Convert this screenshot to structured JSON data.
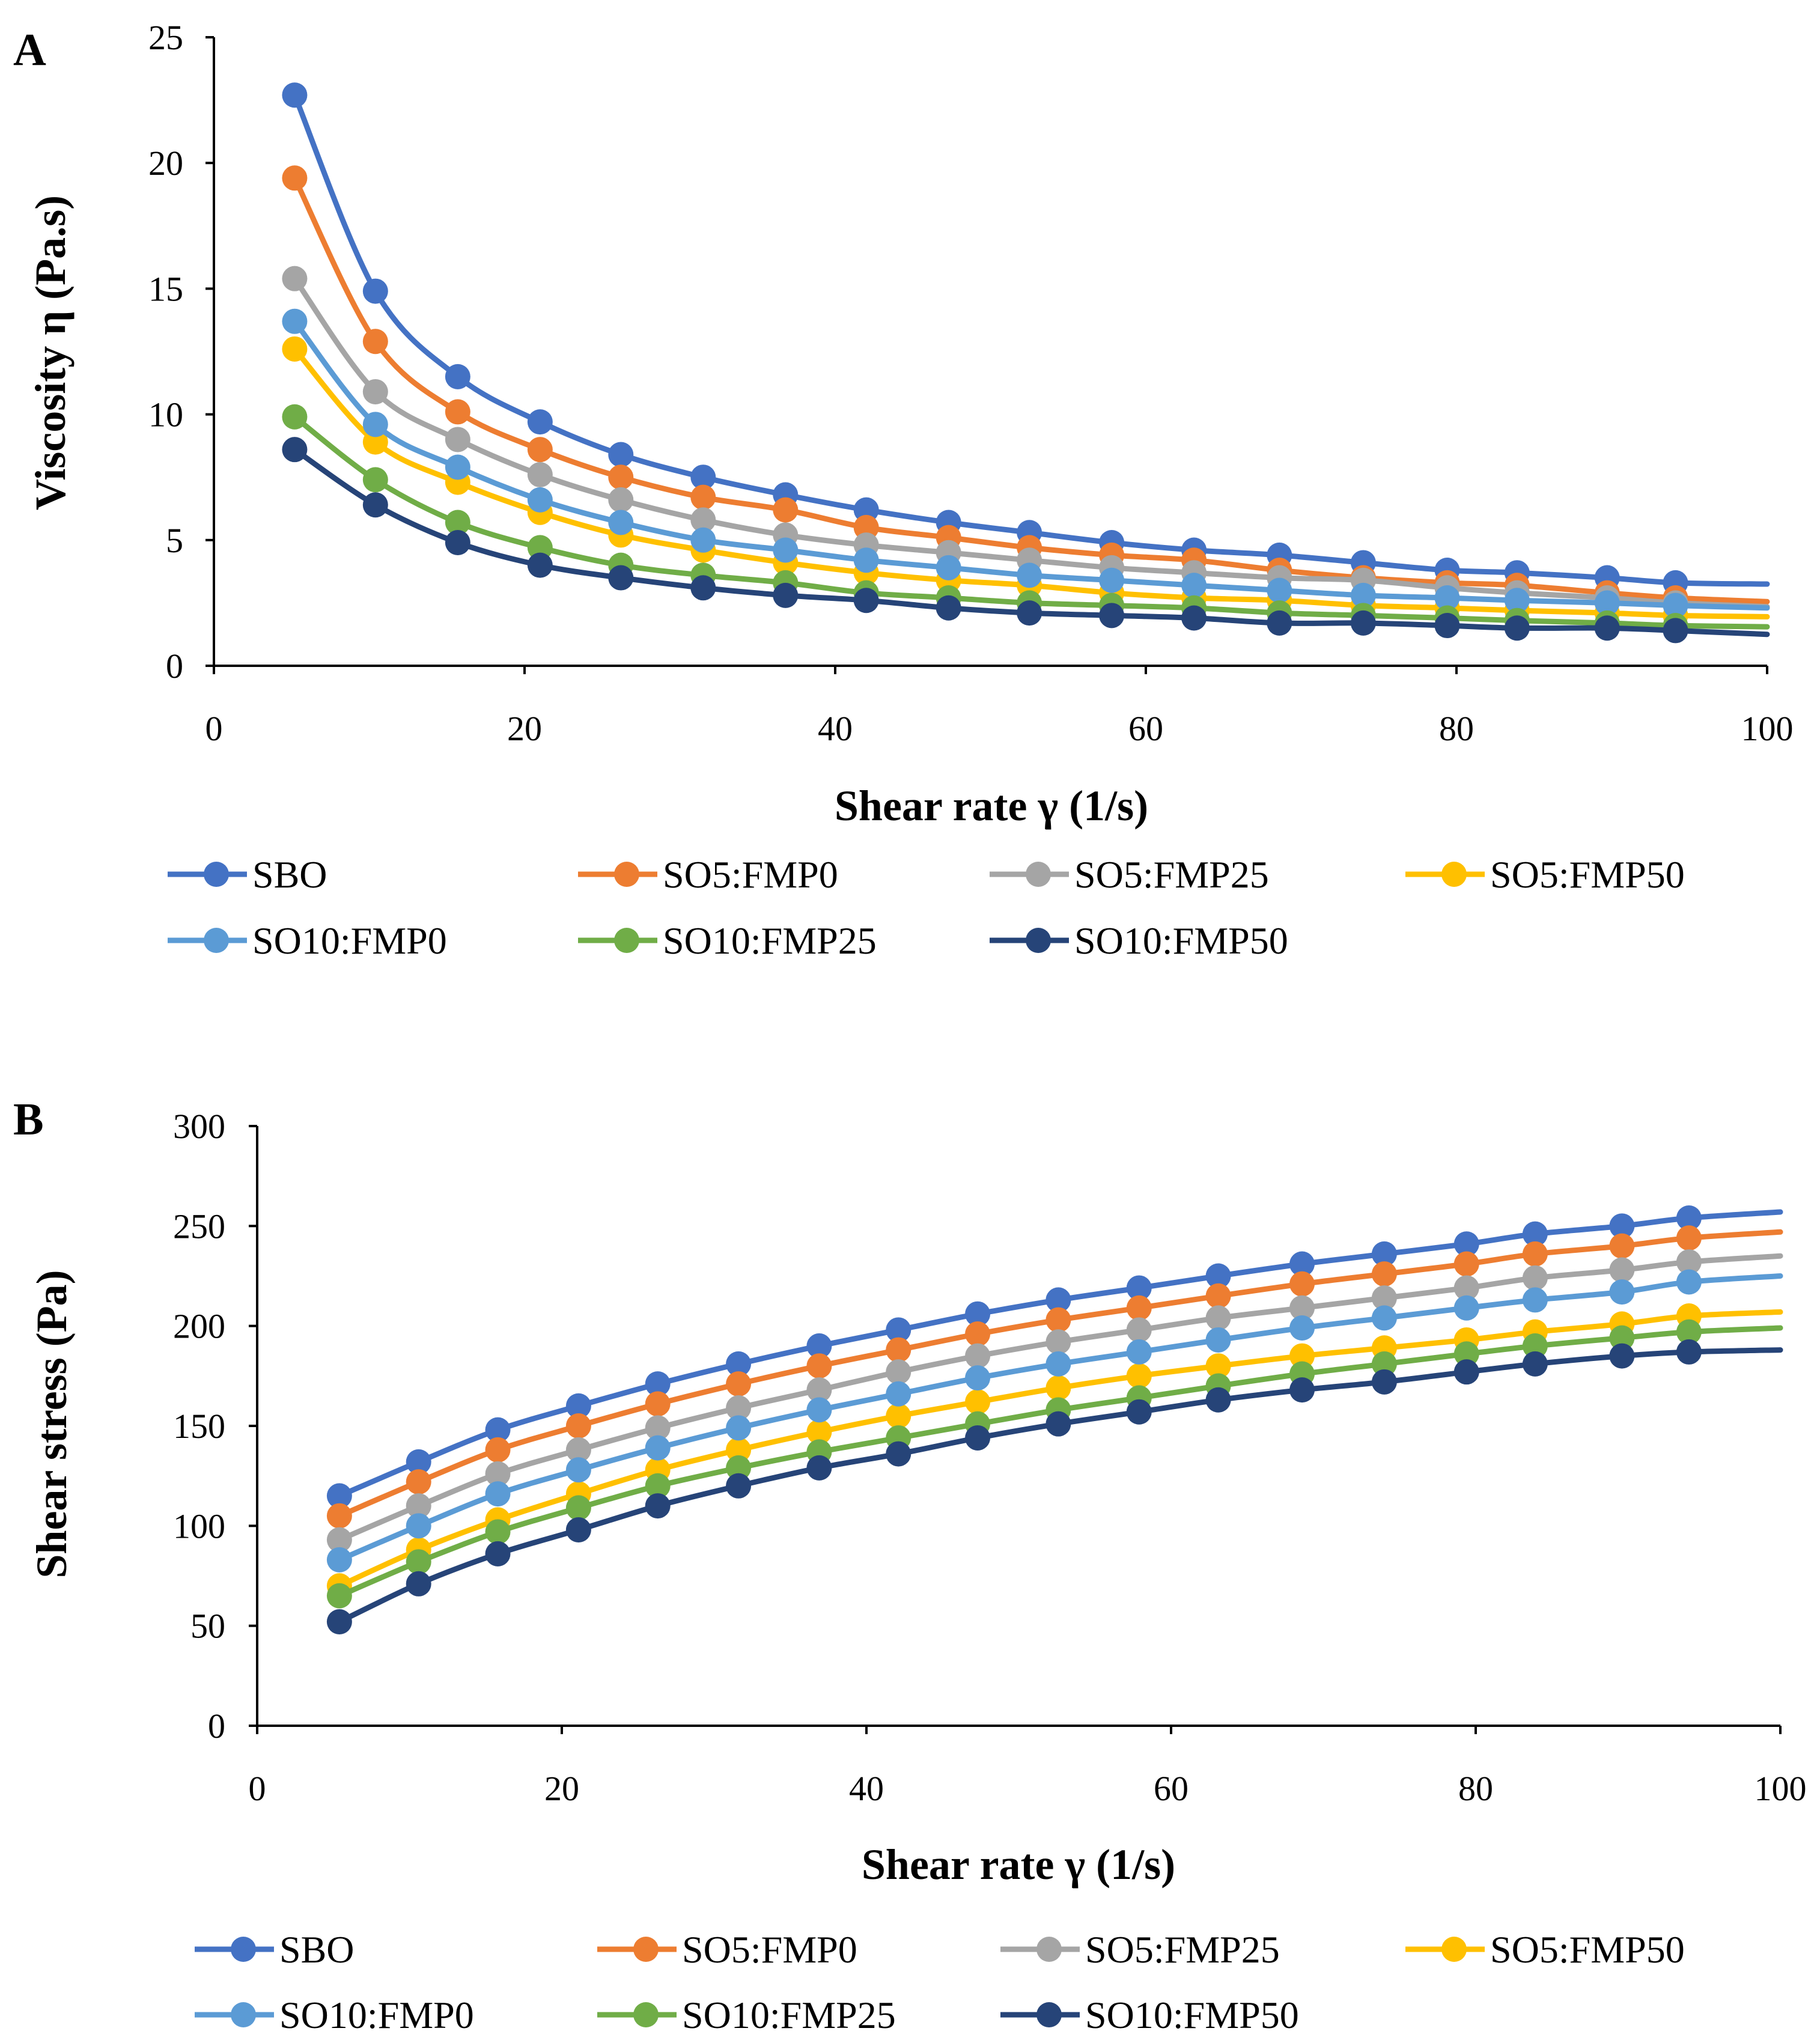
{
  "series_meta": [
    {
      "name": "SBO",
      "color": "#4472C4"
    },
    {
      "name": "SO5:FMP0",
      "color": "#ED7D31"
    },
    {
      "name": "SO5:FMP25",
      "color": "#A5A5A5"
    },
    {
      "name": "SO5:FMP50",
      "color": "#FFC000"
    },
    {
      "name": "SO10:FMP0",
      "color": "#5B9BD5"
    },
    {
      "name": "SO10:FMP25",
      "color": "#70AD47"
    },
    {
      "name": "SO10:FMP50",
      "color": "#264478"
    }
  ],
  "chart_data": [
    {
      "type": "line",
      "panel_label": "A",
      "title": "",
      "xlabel": "Shear rate γ (1/s)",
      "ylabel": "Viscosity η (Pa.s)",
      "xlim": [
        0,
        100
      ],
      "ylim": [
        0,
        25
      ],
      "xticks": [
        "0",
        "20",
        "40",
        "60",
        "80",
        "100"
      ],
      "yticks": [
        "0",
        "5",
        "10",
        "15",
        "20",
        "25"
      ],
      "x": [
        5.2,
        10.4,
        15.7,
        21.0,
        26.2,
        31.5,
        36.8,
        42.0,
        47.3,
        52.5,
        57.8,
        63.1,
        68.6,
        74.0,
        79.4,
        83.9,
        89.7,
        94.1
      ],
      "x_end": 100,
      "series": [
        {
          "name": "SBO",
          "values": [
            22.7,
            14.9,
            11.5,
            9.7,
            8.4,
            7.5,
            6.8,
            6.2,
            5.7,
            5.3,
            4.9,
            4.6,
            4.4,
            4.1,
            3.8,
            3.7,
            3.5,
            3.3
          ],
          "end": 3.25
        },
        {
          "name": "SO5:FMP0",
          "values": [
            19.4,
            12.9,
            10.1,
            8.6,
            7.5,
            6.7,
            6.2,
            5.5,
            5.1,
            4.7,
            4.4,
            4.2,
            3.8,
            3.5,
            3.3,
            3.2,
            2.9,
            2.7
          ],
          "end": 2.55
        },
        {
          "name": "SO5:FMP25",
          "values": [
            15.4,
            10.9,
            9.0,
            7.6,
            6.6,
            5.8,
            5.2,
            4.8,
            4.5,
            4.2,
            3.9,
            3.7,
            3.5,
            3.4,
            3.1,
            2.9,
            2.7,
            2.5
          ],
          "end": 2.35
        },
        {
          "name": "SO5:FMP50",
          "values": [
            12.6,
            8.9,
            7.3,
            6.1,
            5.2,
            4.6,
            4.1,
            3.7,
            3.4,
            3.2,
            2.9,
            2.7,
            2.6,
            2.4,
            2.3,
            2.2,
            2.1,
            2.0
          ],
          "end": 1.95
        },
        {
          "name": "SO10:FMP0",
          "values": [
            13.7,
            9.6,
            7.9,
            6.6,
            5.7,
            5.0,
            4.6,
            4.2,
            3.9,
            3.6,
            3.4,
            3.2,
            3.0,
            2.8,
            2.7,
            2.6,
            2.5,
            2.4
          ],
          "end": 2.3
        },
        {
          "name": "SO10:FMP25",
          "values": [
            9.9,
            7.4,
            5.7,
            4.7,
            4.0,
            3.6,
            3.3,
            2.9,
            2.7,
            2.5,
            2.4,
            2.3,
            2.1,
            2.0,
            1.9,
            1.8,
            1.7,
            1.6
          ],
          "end": 1.55
        },
        {
          "name": "SO10:FMP50",
          "values": [
            8.6,
            6.4,
            4.9,
            4.0,
            3.5,
            3.1,
            2.8,
            2.6,
            2.3,
            2.1,
            2.0,
            1.9,
            1.7,
            1.7,
            1.6,
            1.5,
            1.5,
            1.4
          ],
          "end": 1.25
        }
      ]
    },
    {
      "type": "line",
      "panel_label": "B",
      "title": "",
      "xlabel": "Shear rate γ (1/s)",
      "ylabel": "Shear stress (Pa)",
      "xlim": [
        0,
        100
      ],
      "ylim": [
        0,
        300
      ],
      "xticks": [
        "0",
        "20",
        "40",
        "60",
        "80",
        "100"
      ],
      "yticks": [
        "0",
        "50",
        "100",
        "150",
        "200",
        "250",
        "300"
      ],
      "x": [
        5.4,
        10.6,
        15.8,
        21.1,
        26.3,
        31.6,
        36.9,
        42.1,
        47.3,
        52.6,
        57.9,
        63.1,
        68.6,
        74.0,
        79.4,
        83.9,
        89.6,
        94.0
      ],
      "x_end": 100,
      "series": [
        {
          "name": "SBO",
          "values": [
            115,
            132,
            148,
            160,
            171,
            181,
            190,
            198,
            206,
            213,
            219,
            225,
            231,
            236,
            241,
            246,
            250,
            254
          ],
          "end": 257
        },
        {
          "name": "SO5:FMP0",
          "values": [
            105,
            122,
            138,
            150,
            161,
            171,
            180,
            188,
            196,
            203,
            209,
            215,
            221,
            226,
            231,
            236,
            240,
            244
          ],
          "end": 247
        },
        {
          "name": "SO5:FMP25",
          "values": [
            93,
            110,
            126,
            138,
            149,
            159,
            168,
            177,
            185,
            192,
            198,
            204,
            209,
            214,
            219,
            224,
            228,
            232
          ],
          "end": 235
        },
        {
          "name": "SO5:FMP50",
          "values": [
            70,
            88,
            103,
            116,
            128,
            138,
            147,
            155,
            162,
            169,
            175,
            180,
            185,
            189,
            193,
            197,
            201,
            205
          ],
          "end": 207
        },
        {
          "name": "SO10:FMP0",
          "values": [
            83,
            100,
            116,
            128,
            139,
            149,
            158,
            166,
            174,
            181,
            187,
            193,
            199,
            204,
            209,
            213,
            217,
            222
          ],
          "end": 225
        },
        {
          "name": "SO10:FMP25",
          "values": [
            65,
            82,
            97,
            109,
            120,
            129,
            137,
            144,
            151,
            158,
            164,
            170,
            176,
            181,
            186,
            190,
            194,
            197
          ],
          "end": 199
        },
        {
          "name": "SO10:FMP50",
          "values": [
            52,
            71,
            86,
            98,
            110,
            120,
            129,
            136,
            144,
            151,
            157,
            163,
            168,
            172,
            177,
            181,
            185,
            187
          ],
          "end": 188
        }
      ]
    }
  ]
}
